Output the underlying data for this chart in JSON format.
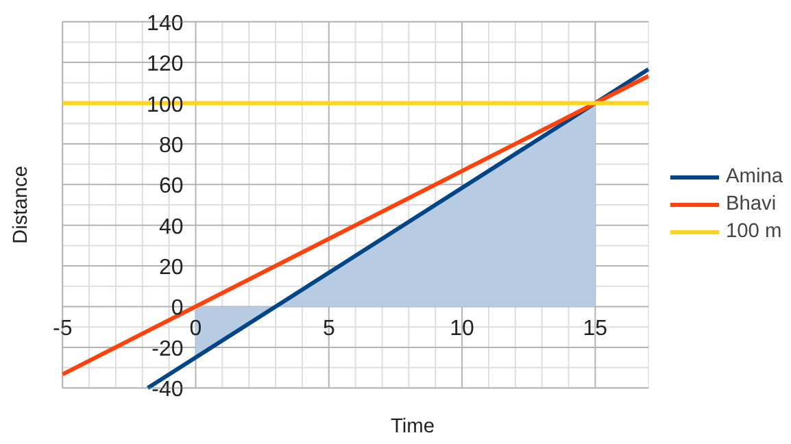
{
  "chart_data": {
    "type": "line",
    "xlabel": "Time",
    "ylabel": "Distance",
    "xlim": [
      -5,
      17
    ],
    "ylim": [
      -40,
      140
    ],
    "xticks": [
      -5,
      0,
      5,
      10,
      15
    ],
    "yticks": [
      -40,
      -20,
      0,
      20,
      40,
      60,
      80,
      100,
      120,
      140
    ],
    "grid": true,
    "legend": "right",
    "series": [
      {
        "type": "area",
        "color": "#b7cbe3",
        "x": [
          0,
          15
        ],
        "values": [
          -25,
          100
        ]
      },
      {
        "name": "Amina",
        "color": "#004586",
        "x": [
          -1.8,
          17
        ],
        "values": [
          -40,
          116.7
        ]
      },
      {
        "name": "Bhavi",
        "color": "#ff420e",
        "x": [
          -5,
          17
        ],
        "values": [
          -33.3,
          113.3
        ]
      },
      {
        "name": "100 m",
        "color": "#ffd320",
        "x": [
          -5,
          17
        ],
        "values": [
          100,
          100
        ]
      }
    ]
  }
}
